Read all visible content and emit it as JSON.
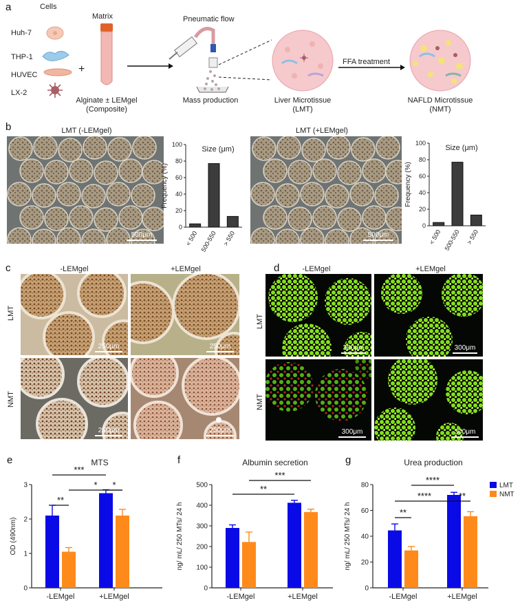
{
  "panels": {
    "a": "a",
    "b": "b",
    "c": "c",
    "d": "d",
    "e": "e",
    "f": "f",
    "g": "g"
  },
  "schematic": {
    "cells_header": "Cells",
    "matrix_header": "Matrix",
    "cells": [
      "Huh-7",
      "THP-1",
      "HUVEC",
      "LX-2"
    ],
    "plus": "+",
    "matrix_label_1": "Alginate ± LEMgel",
    "matrix_label_2": "(Composite)",
    "pneumatic": "Pneumatic flow",
    "mass_production": "Mass production",
    "lmt_label_1": "Liver Microtissue",
    "lmt_label_2": "(LMT)",
    "ffa": "FFA treatment",
    "nmt_label_1": "NAFLD Microtissue",
    "nmt_label_2": "(NMT)",
    "colors": {
      "matrix_cap": "#e0622a",
      "matrix_tube": "#f3b8b3",
      "tissue": "#f6c9cc",
      "cell_blue": "#8cc0e6",
      "cell_star": "#a85f64"
    }
  },
  "panel_b": {
    "left_title": "LMT (-LEMgel)",
    "right_title": "LMT  (+LEMgel)",
    "scale_left": "500μm",
    "scale_right": "500μm",
    "hist_left": {
      "type": "bar",
      "title": "Size (μm)",
      "ylabel": "Frequency (%)",
      "categories": [
        "< 500",
        "500-550",
        "> 550"
      ],
      "values": [
        4,
        77,
        13
      ],
      "ylim": [
        0,
        100
      ],
      "yticks": [
        "0",
        "20",
        "40",
        "60",
        "80",
        "100"
      ]
    },
    "hist_right": {
      "type": "bar",
      "title": "Size (μm)",
      "ylabel": "Frequency (%)",
      "categories": [
        "< 500",
        "500-550",
        "> 550"
      ],
      "values": [
        4,
        77,
        13
      ],
      "ylim": [
        0,
        100
      ],
      "yticks": [
        "0",
        "20",
        "40",
        "60",
        "80",
        "100"
      ]
    }
  },
  "panel_c": {
    "col_minus": "-LEMgel",
    "col_plus": "+LEMgel",
    "row_lmt": "LMT",
    "row_nmt": "NMT",
    "scales": [
      "250μm",
      "250μm",
      "250μm",
      "250μm"
    ]
  },
  "panel_d": {
    "col_minus": "-LEMgel",
    "col_plus": "+LEMgel",
    "row_lmt": "LMT",
    "row_nmt": "NMT",
    "scales": [
      "300μm",
      "300μm",
      "300μm",
      "300μm"
    ]
  },
  "chart_data": [
    {
      "type": "bar",
      "title": "MTS",
      "ylabel": "OD (490nm)",
      "categories": [
        "-LEMgel",
        "+LEMgel"
      ],
      "series": [
        {
          "name": "LMT",
          "values": [
            2.1,
            2.75
          ],
          "errors": [
            0.3,
            0.1
          ],
          "color": "#0a0ae6"
        },
        {
          "name": "NMT",
          "values": [
            1.05,
            2.1
          ],
          "errors": [
            0.12,
            0.18
          ],
          "color": "#ff8a1c"
        }
      ],
      "ylim": [
        0,
        3
      ],
      "yticks": [
        "0",
        "1",
        "2",
        "3"
      ],
      "significance": [
        "**",
        "*",
        "***",
        "*"
      ]
    },
    {
      "type": "bar",
      "title": "Albumin secretion",
      "ylabel": "ng/ mL/ 250 MTs/ 24 h",
      "categories": [
        "-LEMgel",
        "+LEMgel"
      ],
      "series": [
        {
          "name": "LMT",
          "values": [
            290,
            412
          ],
          "errors": [
            15,
            12
          ],
          "color": "#0a0ae6"
        },
        {
          "name": "NMT",
          "values": [
            222,
            367
          ],
          "errors": [
            48,
            14
          ],
          "color": "#ff8a1c"
        }
      ],
      "ylim": [
        0,
        500
      ],
      "yticks": [
        "0",
        "100",
        "200",
        "300",
        "400",
        "500"
      ],
      "significance": [
        "**",
        "***"
      ]
    },
    {
      "type": "bar",
      "title": "Urea production",
      "ylabel": "ng/ mL/ 250 MTs/ 24 h",
      "categories": [
        "-LEMgel",
        "+LEMgel"
      ],
      "series": [
        {
          "name": "LMT",
          "values": [
            44.5,
            72
          ],
          "errors": [
            5,
            2
          ],
          "color": "#0a0ae6"
        },
        {
          "name": "NMT",
          "values": [
            29,
            55.5
          ],
          "errors": [
            3,
            3.5
          ],
          "color": "#ff8a1c"
        }
      ],
      "ylim": [
        0,
        80
      ],
      "yticks": [
        "0",
        "20",
        "40",
        "60",
        "80"
      ],
      "legend": [
        "LMT",
        "NMT"
      ],
      "legend_position": "top-right",
      "significance": [
        "**",
        "****",
        "****",
        "**"
      ]
    }
  ]
}
